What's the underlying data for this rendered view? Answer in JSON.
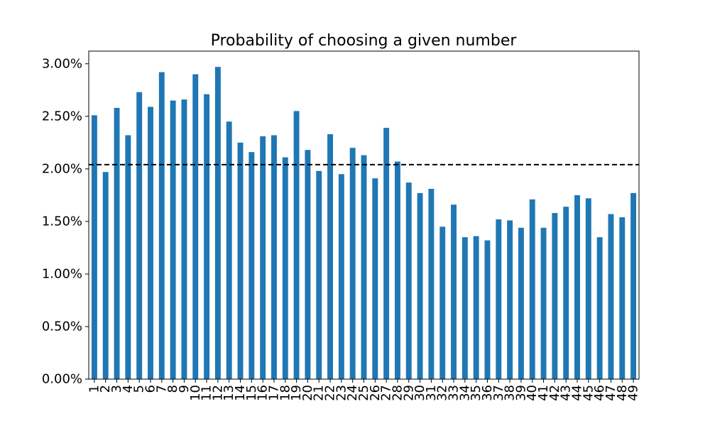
{
  "chart_data": {
    "type": "bar",
    "title": "Probability of choosing a given number",
    "xlabel": "",
    "ylabel": "",
    "categories": [
      "1",
      "2",
      "3",
      "4",
      "5",
      "6",
      "7",
      "8",
      "9",
      "10",
      "11",
      "12",
      "13",
      "14",
      "15",
      "16",
      "17",
      "18",
      "19",
      "20",
      "21",
      "22",
      "23",
      "24",
      "25",
      "26",
      "27",
      "28",
      "29",
      "30",
      "31",
      "32",
      "33",
      "34",
      "35",
      "36",
      "37",
      "38",
      "39",
      "40",
      "41",
      "42",
      "43",
      "44",
      "45",
      "46",
      "47",
      "48",
      "49"
    ],
    "values": [
      2.51,
      1.97,
      2.58,
      2.32,
      2.73,
      2.59,
      2.92,
      2.65,
      2.66,
      2.9,
      2.71,
      2.97,
      2.45,
      2.25,
      2.16,
      2.31,
      2.32,
      2.11,
      2.55,
      2.18,
      1.98,
      2.33,
      1.95,
      2.2,
      2.13,
      1.91,
      2.39,
      2.07,
      1.87,
      1.77,
      1.81,
      1.45,
      1.66,
      1.35,
      1.36,
      1.32,
      1.52,
      1.51,
      1.44,
      1.71,
      1.44,
      1.58,
      1.64,
      1.75,
      1.72,
      1.35,
      1.57,
      1.54,
      1.77
    ],
    "value_unit": "percent",
    "reference_line": {
      "value": 2.04,
      "style": "dashed",
      "color": "#000000"
    },
    "ylim": [
      0,
      3.12
    ],
    "yticks": [
      0,
      0.5,
      1.0,
      1.5,
      2.0,
      2.5,
      3.0
    ],
    "ytick_labels": [
      "0.00%",
      "0.50%",
      "1.00%",
      "1.50%",
      "2.00%",
      "2.50%",
      "3.00%"
    ],
    "bar_color": "#1f77b4",
    "grid": false,
    "legend": "none"
  }
}
